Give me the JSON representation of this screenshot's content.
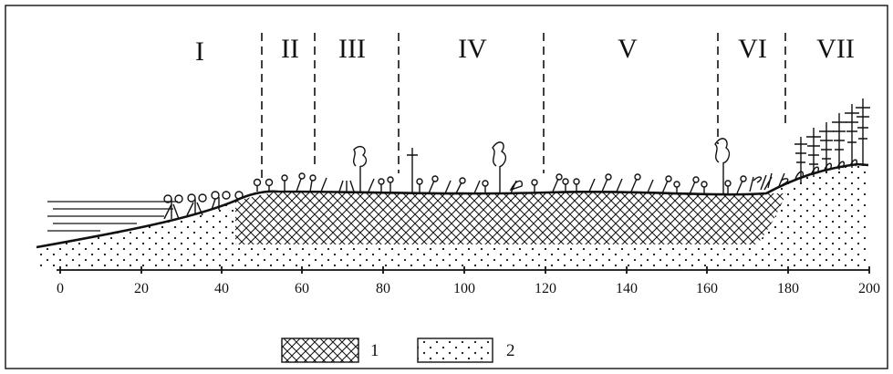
{
  "zones": [
    "I",
    "II",
    "III",
    "IV",
    "V",
    "VI",
    "VII"
  ],
  "axis": {
    "ticks": [
      "0",
      "20",
      "40",
      "60",
      "80",
      "100",
      "120",
      "140",
      "160",
      "180",
      "200"
    ]
  },
  "legend": [
    {
      "pattern": "crosshatch",
      "label": "1"
    },
    {
      "pattern": "dotted",
      "label": "2"
    }
  ]
}
